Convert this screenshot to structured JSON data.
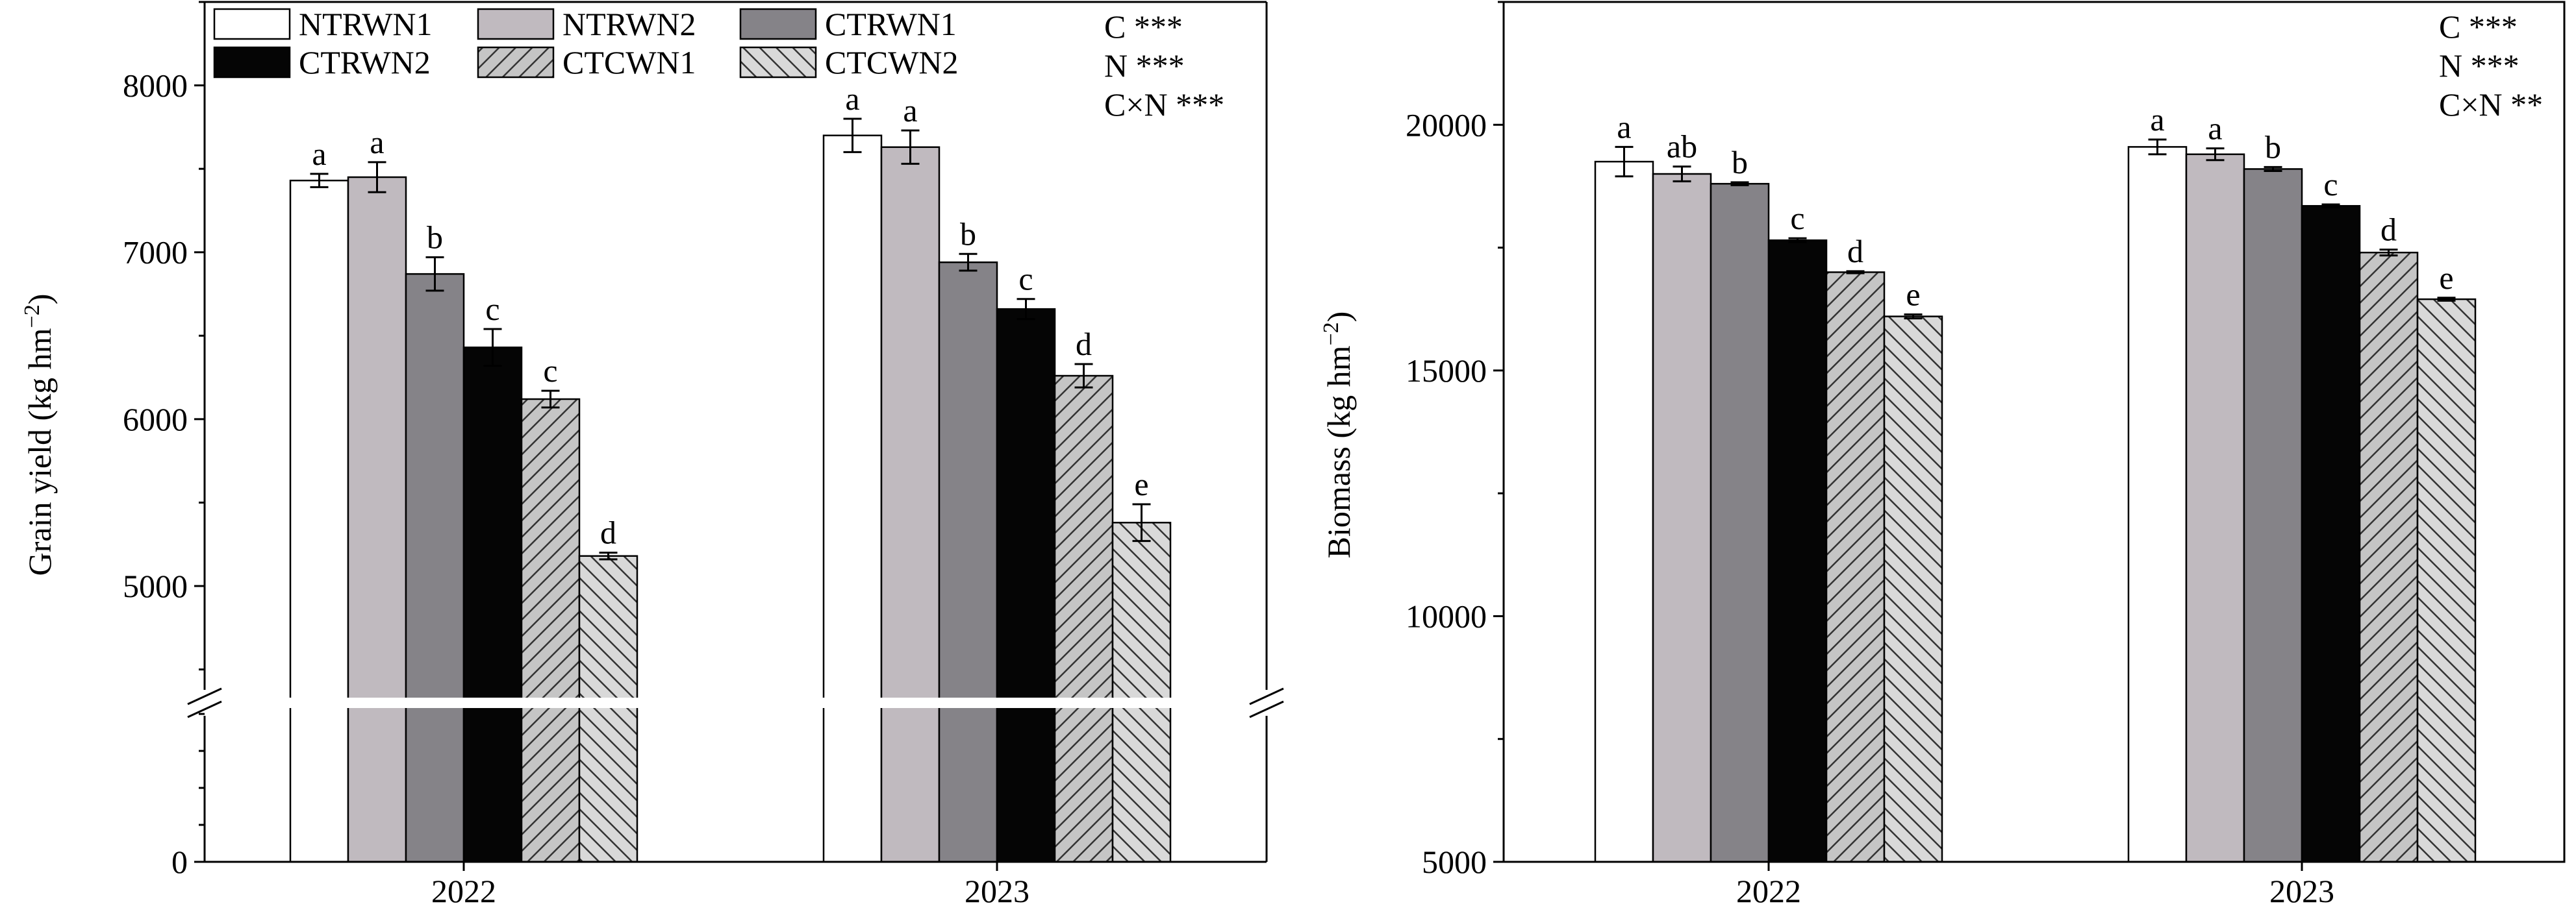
{
  "chart_data": [
    {
      "type": "bar",
      "categories": [
        "2022",
        "2023"
      ],
      "ylabel": "Grain yield (kg hm",
      "ylabel_sup": "−2",
      "ylabel_close": ")",
      "axis_break": {
        "lower": [
          0,
          4300
        ],
        "upper": [
          4300,
          8500
        ]
      },
      "yticks": [
        "0",
        "5000",
        "6000",
        "7000",
        "8000"
      ],
      "series": [
        {
          "name": "NTRWN1",
          "values": [
            7430,
            7700
          ],
          "errors": [
            40,
            100
          ],
          "letters": [
            "a",
            "a"
          ]
        },
        {
          "name": "NTRWN2",
          "values": [
            7450,
            7630
          ],
          "errors": [
            90,
            100
          ],
          "letters": [
            "a",
            "a"
          ]
        },
        {
          "name": "CTRWN1",
          "values": [
            6870,
            6940
          ],
          "errors": [
            100,
            50
          ],
          "letters": [
            "b",
            "b"
          ]
        },
        {
          "name": "CTRWN2",
          "values": [
            6430,
            6660
          ],
          "errors": [
            110,
            60
          ],
          "letters": [
            "c",
            "c"
          ]
        },
        {
          "name": "CTCWN1",
          "values": [
            6120,
            6260
          ],
          "errors": [
            50,
            70
          ],
          "letters": [
            "c",
            "d"
          ]
        },
        {
          "name": "CTCWN2",
          "values": [
            5180,
            5380
          ],
          "errors": [
            20,
            110
          ],
          "letters": [
            "d",
            "e"
          ]
        }
      ],
      "stats": [
        "C ***",
        "N ***",
        "C×N ***"
      ],
      "legend": "top-left"
    },
    {
      "type": "bar",
      "categories": [
        "2022",
        "2023"
      ],
      "ylabel": "Biomass (kg hm",
      "ylabel_sup": "−2",
      "ylabel_close": ")",
      "ylim": [
        5000,
        22500
      ],
      "yticks": [
        "5000",
        "10000",
        "15000",
        "20000"
      ],
      "series": [
        {
          "name": "NTRWN1",
          "values": [
            19250,
            19550
          ],
          "errors": [
            300,
            150
          ],
          "letters": [
            "a",
            "a"
          ]
        },
        {
          "name": "NTRWN2",
          "values": [
            19000,
            19400
          ],
          "errors": [
            150,
            120
          ],
          "letters": [
            "ab",
            "a"
          ]
        },
        {
          "name": "CTRWN1",
          "values": [
            18800,
            19100
          ],
          "errors": [
            30,
            40
          ],
          "letters": [
            "b",
            "b"
          ]
        },
        {
          "name": "CTRWN2",
          "values": [
            17650,
            18350
          ],
          "errors": [
            40,
            30
          ],
          "letters": [
            "c",
            "c"
          ]
        },
        {
          "name": "CTCWN1",
          "values": [
            17000,
            17400
          ],
          "errors": [
            20,
            60
          ],
          "letters": [
            "d",
            "d"
          ]
        },
        {
          "name": "CTCWN2",
          "values": [
            16100,
            16450
          ],
          "errors": [
            40,
            30
          ],
          "letters": [
            "e",
            "e"
          ]
        }
      ],
      "stats": [
        "C ***",
        "N ***",
        "C×N **"
      ]
    }
  ],
  "styles": {
    "fills": [
      "#ffffff",
      "#c0babf",
      "#858388",
      "#050505",
      "#c5c5c5",
      "#d9d9d9"
    ],
    "hatch": [
      "none",
      "none",
      "none",
      "none",
      "forward-diagonal",
      "backward-diagonal"
    ]
  }
}
